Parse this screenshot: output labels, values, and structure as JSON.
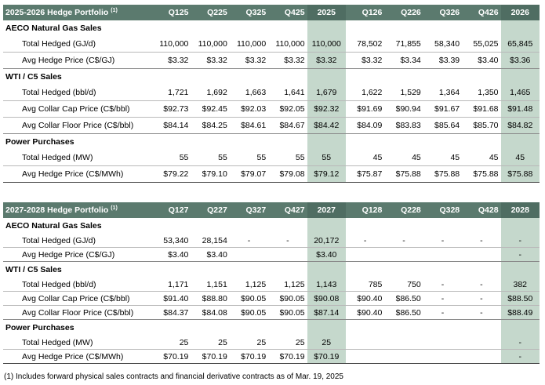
{
  "colors": {
    "header_bg": "#5b7a6e",
    "highlight": "#c5d8cc"
  },
  "table1": {
    "title": "2025-2026 Hedge Portfolio",
    "title_note": "(1)",
    "columns": [
      "Q125",
      "Q225",
      "Q325",
      "Q425",
      "2025",
      "Q126",
      "Q226",
      "Q326",
      "Q426",
      "2026"
    ],
    "sections": [
      {
        "name": "AECO Natural Gas Sales",
        "rows": [
          {
            "label": "Total Hedged (GJ/d)",
            "values": [
              "110,000",
              "110,000",
              "110,000",
              "110,000",
              "110,000",
              "78,502",
              "71,855",
              "58,340",
              "55,025",
              "65,845"
            ]
          },
          {
            "label": "Avg Hedge Price (C$/GJ)",
            "values": [
              "$3.32",
              "$3.32",
              "$3.32",
              "$3.32",
              "$3.32",
              "$3.32",
              "$3.34",
              "$3.39",
              "$3.40",
              "$3.36"
            ]
          }
        ]
      },
      {
        "name": "WTI / C5 Sales",
        "rows": [
          {
            "label": "Total Hedged (bbl/d)",
            "values": [
              "1,721",
              "1,692",
              "1,663",
              "1,641",
              "1,679",
              "1,622",
              "1,529",
              "1,364",
              "1,350",
              "1,465"
            ]
          },
          {
            "label": "Avg Collar Cap Price (C$/bbl)",
            "values": [
              "$92.73",
              "$92.45",
              "$92.03",
              "$92.05",
              "$92.32",
              "$91.69",
              "$90.94",
              "$91.67",
              "$91.68",
              "$91.48"
            ]
          },
          {
            "label": "Avg Collar Floor Price (C$/bbl)",
            "values": [
              "$84.14",
              "$84.25",
              "$84.61",
              "$84.67",
              "$84.42",
              "$84.09",
              "$83.83",
              "$85.64",
              "$85.70",
              "$84.82"
            ]
          }
        ]
      },
      {
        "name": "Power Purchases",
        "rows": [
          {
            "label": "Total Hedged (MW)",
            "values": [
              "55",
              "55",
              "55",
              "55",
              "55",
              "45",
              "45",
              "45",
              "45",
              "45"
            ]
          },
          {
            "label": "Avg Hedge Price (C$/MWh)",
            "values": [
              "$79.22",
              "$79.10",
              "$79.07",
              "$79.08",
              "$79.12",
              "$75.87",
              "$75.88",
              "$75.88",
              "$75.88",
              "$75.88"
            ]
          }
        ]
      }
    ]
  },
  "table2": {
    "title": "2027-2028 Hedge Portfolio",
    "title_note": "(1)",
    "columns": [
      "Q127",
      "Q227",
      "Q327",
      "Q427",
      "2027",
      "Q128",
      "Q228",
      "Q328",
      "Q428",
      "2028"
    ],
    "sections": [
      {
        "name": "AECO Natural Gas Sales",
        "rows": [
          {
            "label": "Total Hedged (GJ/d)",
            "values": [
              "53,340",
              "28,154",
              "-",
              "-",
              "20,172",
              "-",
              "-",
              "-",
              "-",
              "-"
            ]
          },
          {
            "label": "Avg Hedge Price (C$/GJ)",
            "values": [
              "$3.40",
              "$3.40",
              "",
              "",
              "$3.40",
              "",
              "",
              "",
              "",
              "-"
            ]
          }
        ]
      },
      {
        "name": "WTI / C5 Sales",
        "rows": [
          {
            "label": "Total Hedged (bbl/d)",
            "values": [
              "1,171",
              "1,151",
              "1,125",
              "1,125",
              "1,143",
              "785",
              "750",
              "-",
              "-",
              "382"
            ]
          },
          {
            "label": "Avg Collar Cap Price (C$/bbl)",
            "values": [
              "$91.40",
              "$88.80",
              "$90.05",
              "$90.05",
              "$90.08",
              "$90.40",
              "$86.50",
              "-",
              "-",
              "$88.50"
            ]
          },
          {
            "label": "Avg Collar Floor Price (C$/bbl)",
            "values": [
              "$84.37",
              "$84.08",
              "$90.05",
              "$90.05",
              "$87.14",
              "$90.40",
              "$86.50",
              "-",
              "-",
              "$88.49"
            ]
          }
        ]
      },
      {
        "name": "Power Purchases",
        "rows": [
          {
            "label": "Total Hedged (MW)",
            "values": [
              "25",
              "25",
              "25",
              "25",
              "25",
              "",
              "",
              "",
              "",
              "-"
            ]
          },
          {
            "label": "Avg Hedge Price (C$/MWh)",
            "values": [
              "$70.19",
              "$70.19",
              "$70.19",
              "$70.19",
              "$70.19",
              "",
              "",
              "",
              "",
              "-"
            ]
          }
        ]
      }
    ]
  },
  "footnote": "(1) Includes forward physical sales contracts and financial derivative contracts as of Mar. 19, 2025"
}
